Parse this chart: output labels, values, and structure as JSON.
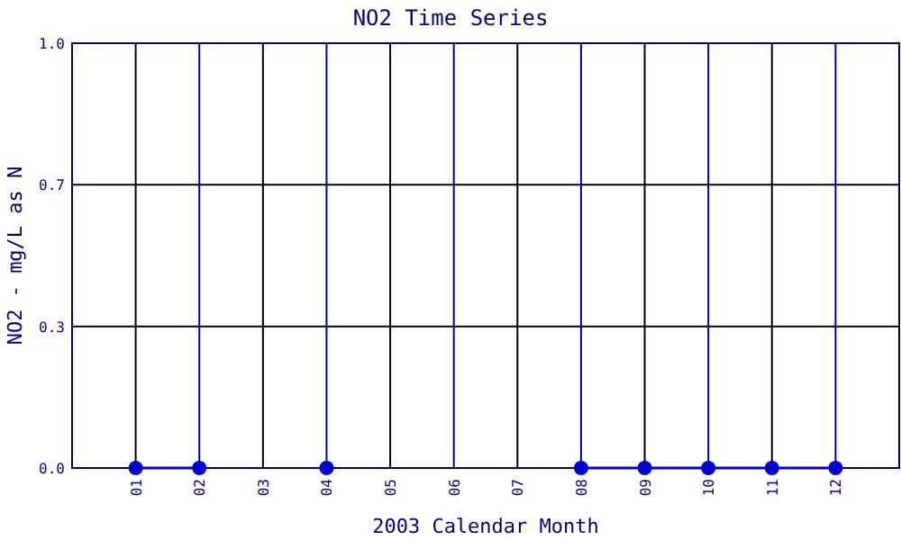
{
  "chart_data": {
    "type": "line",
    "title": "NO2 Time Series",
    "xlabel": "2003 Calendar Month",
    "ylabel": "NO2 - mg/L as N",
    "categories": [
      "01",
      "02",
      "03",
      "04",
      "05",
      "06",
      "07",
      "08",
      "09",
      "10",
      "11",
      "12"
    ],
    "series": [
      {
        "color": "#0000cc",
        "values": [
          0,
          0,
          null,
          0,
          null,
          null,
          null,
          0,
          0,
          0,
          0,
          0
        ]
      }
    ],
    "ylim": [
      0,
      1
    ],
    "yticks": [
      {
        "value": 0,
        "label": "0.0"
      },
      {
        "value": 0.333,
        "label": "0.3"
      },
      {
        "value": 0.667,
        "label": "0.7"
      },
      {
        "value": 1,
        "label": "1.0"
      }
    ],
    "grid": true,
    "marker": "circle"
  }
}
